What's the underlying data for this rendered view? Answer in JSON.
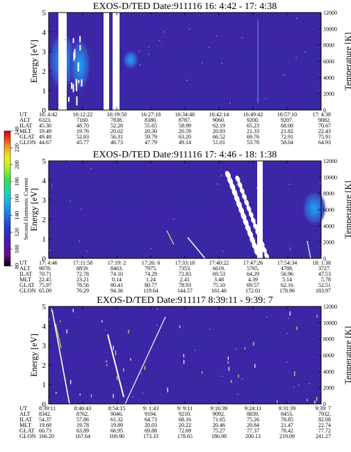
{
  "colorbar": {
    "label": "Second Harmonic Current",
    "min": 80,
    "max": 240,
    "ticks": [
      80,
      100,
      120,
      140,
      160,
      180,
      200,
      220,
      240
    ],
    "colors": [
      "#000000",
      "#6a0a8c",
      "#4a1aa8",
      "#2438cc",
      "#1a78e6",
      "#18b4f0",
      "#20d8b0",
      "#30e050",
      "#a8f020",
      "#f0f020",
      "#f0a020",
      "#f03020",
      "#d00000"
    ]
  },
  "y_labels": {
    "left": "Energy [eV]",
    "right": "Temperature [K]"
  },
  "row_labels": [
    "UT",
    "ALT",
    "ILAT",
    "MLT",
    "GLAT",
    "GLON"
  ],
  "chart_data": [
    {
      "type": "heatmap",
      "title": "EXOS-D/TED  Date:911116  16: 4:42 - 17: 4:38",
      "ylabel": "Energy [eV]",
      "y2label": "Temperature [K]",
      "ylim": [
        0,
        5
      ],
      "y_ticks": [
        0,
        1,
        2,
        3,
        4,
        5
      ],
      "y2lim": [
        0,
        12000
      ],
      "y2_ticks": [
        0,
        2000,
        4000,
        6000,
        8000,
        10000,
        12000
      ],
      "x_labels": {
        "UT": [
          "16: 4:42",
          "16:12:22",
          "16:19:50",
          "16:27:18",
          "16:34:46",
          "16:42:14",
          "16:49:42",
          "16:57:10",
          "17: 4:38"
        ],
        "ALT": [
          "6323.",
          "7160.",
          "7838.",
          "8380.",
          "8787.",
          "9060.",
          "9200.",
          "9207.",
          "9082."
        ],
        "ILAT": [
          "45.30",
          "48.70",
          "52.20",
          "55.65",
          "58.99",
          "62.19",
          "65.23",
          "68.08",
          "70.67"
        ],
        "MLT": [
          "19.49",
          "19.76",
          "20.02",
          "20.30",
          "20.59",
          "20.93",
          "21.33",
          "21.82",
          "22.43"
        ],
        "GLAT": [
          "49.48",
          "52.83",
          "56.31",
          "59.79",
          "63.20",
          "66.52",
          "69.76",
          "72.91",
          "75.91"
        ],
        "GLON": [
          "44.67",
          "45.77",
          "46.73",
          "47.79",
          "49.14",
          "51.01",
          "53.78",
          "58.04",
          "64.93"
        ]
      }
    },
    {
      "type": "heatmap",
      "title": "EXOS-D/TED  Date:911116  17: 4:46 - 18: 1:38",
      "ylabel": "Energy [eV]",
      "y2label": "Temperature [K]",
      "ylim": [
        0,
        5
      ],
      "y_ticks": [
        0,
        1,
        2,
        3,
        4,
        5
      ],
      "y2lim": [
        0,
        12000
      ],
      "y2_ticks": [
        0,
        2000,
        4000,
        6000,
        8000,
        10000,
        12000
      ],
      "x_labels": {
        "UT": [
          "17: 4:46",
          "17:11:58",
          "17:19: 2",
          "17:26: 6",
          "17:33:18",
          "17:40:22",
          "17:47:26",
          "17:54:34",
          "18: 1:38"
        ],
        "ALT": [
          "9078.",
          "8859.",
          "8463.",
          "7975.",
          "7353.",
          "6619.",
          "5765.",
          "4788.",
          "3727."
        ],
        "ILAT": [
          "70.71",
          "72.78",
          "74.10",
          "74.29",
          "72.83",
          "69.53",
          "64.29",
          "56.96",
          "47.53"
        ],
        "MLT": [
          "22.45",
          "23.21",
          "0.14",
          "1.24",
          "2.41",
          "3.48",
          "4.39",
          "5.14",
          "5.78"
        ],
        "GLAT": [
          "75.97",
          "78.56",
          "80.41",
          "80.77",
          "78.93",
          "75.10",
          "69.57",
          "62.16",
          "52.51"
        ],
        "GLON": [
          "65.09",
          "76.29",
          "94.36",
          "119.64",
          "144.57",
          "161.46",
          "172.01",
          "178.96",
          "183.97"
        ]
      }
    },
    {
      "type": "heatmap",
      "title": "EXOS-D/TED  Date:911117  8:39:11 - 9:39: 7",
      "ylabel": "Energy [eV]",
      "y2label": "Temperature [K]",
      "ylim": [
        0,
        5
      ],
      "y_ticks": [
        0,
        1,
        2,
        3,
        4,
        5
      ],
      "y2lim": [
        0,
        12000
      ],
      "y2_ticks": [
        0,
        2000,
        4000,
        6000,
        8000,
        10000,
        12000
      ],
      "x_labels": {
        "UT": [
          "8:39:11",
          "8:46:43",
          "8:54:15",
          "9: 1:43",
          "9: 9:11",
          "9:16:39",
          "9:24:11",
          "9:31:39",
          "9:39: 7"
        ],
        "ALT": [
          "8342.",
          "8762.",
          "9046.",
          "9194.",
          "9210.",
          "9092.",
          "8839.",
          "8453.",
          "7932."
        ],
        "ILAT": [
          "54.37",
          "57.86",
          "61.32",
          "64.73",
          "68.16",
          "71.65",
          "75.26",
          "78.85",
          "82.08"
        ],
        "MLT": [
          "19.68",
          "19.78",
          "19.89",
          "20.03",
          "20.22",
          "20.46",
          "20.84",
          "21.47",
          "22.74"
        ],
        "GLAT": [
          "60.73",
          "63.89",
          "66.95",
          "69.88",
          "72.69",
          "75.27",
          "77.37",
          "78.42",
          "77.72"
        ],
        "GLON": [
          "166.20",
          "167.64",
          "169.90",
          "173.33",
          "178.65",
          "186.98",
          "200.13",
          "219.09",
          "241.27"
        ]
      }
    }
  ]
}
